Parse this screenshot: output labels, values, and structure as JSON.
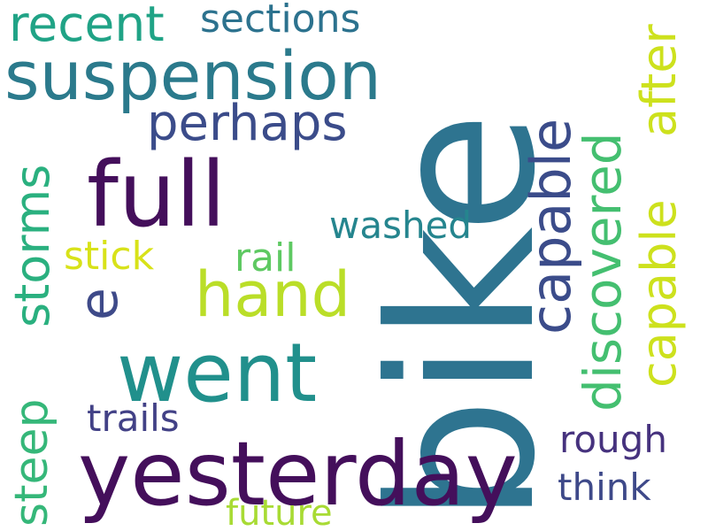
{
  "words": [
    {
      "id": "bike",
      "text": "bike",
      "color": "#2e7490"
    },
    {
      "id": "yesterday",
      "text": "yesterday",
      "color": "#440f5b"
    },
    {
      "id": "full",
      "text": "full",
      "color": "#440f5b"
    },
    {
      "id": "went",
      "text": "went",
      "color": "#21908c"
    },
    {
      "id": "suspension",
      "text": "suspension",
      "color": "#2b7a8c"
    },
    {
      "id": "hand",
      "text": "hand",
      "color": "#bade28"
    },
    {
      "id": "capable-1",
      "text": "capable",
      "color": "#3b4c8a"
    },
    {
      "id": "capable-2",
      "text": "capable",
      "color": "#cde11d"
    },
    {
      "id": "discovered",
      "text": "discovered",
      "color": "#44bf70"
    },
    {
      "id": "after",
      "text": "after",
      "color": "#cde11d"
    },
    {
      "id": "recent",
      "text": "recent",
      "color": "#20a386"
    },
    {
      "id": "sections",
      "text": "sections",
      "color": "#2c728e"
    },
    {
      "id": "perhaps",
      "text": "perhaps",
      "color": "#3b4c8a"
    },
    {
      "id": "storms",
      "text": "storms",
      "color": "#2ab07f"
    },
    {
      "id": "e",
      "text": "e",
      "color": "#3e4a89"
    },
    {
      "id": "washed",
      "text": "washed",
      "color": "#25858e"
    },
    {
      "id": "stick",
      "text": "stick",
      "color": "#d8e219"
    },
    {
      "id": "rail",
      "text": "rail",
      "color": "#5ec962"
    },
    {
      "id": "steep",
      "text": "steep",
      "color": "#35b779"
    },
    {
      "id": "trails",
      "text": "trails",
      "color": "#424186"
    },
    {
      "id": "rough",
      "text": "rough",
      "color": "#46327e"
    },
    {
      "id": "think",
      "text": "think",
      "color": "#3e4989"
    },
    {
      "id": "future",
      "text": "future",
      "color": "#a8db34"
    }
  ]
}
